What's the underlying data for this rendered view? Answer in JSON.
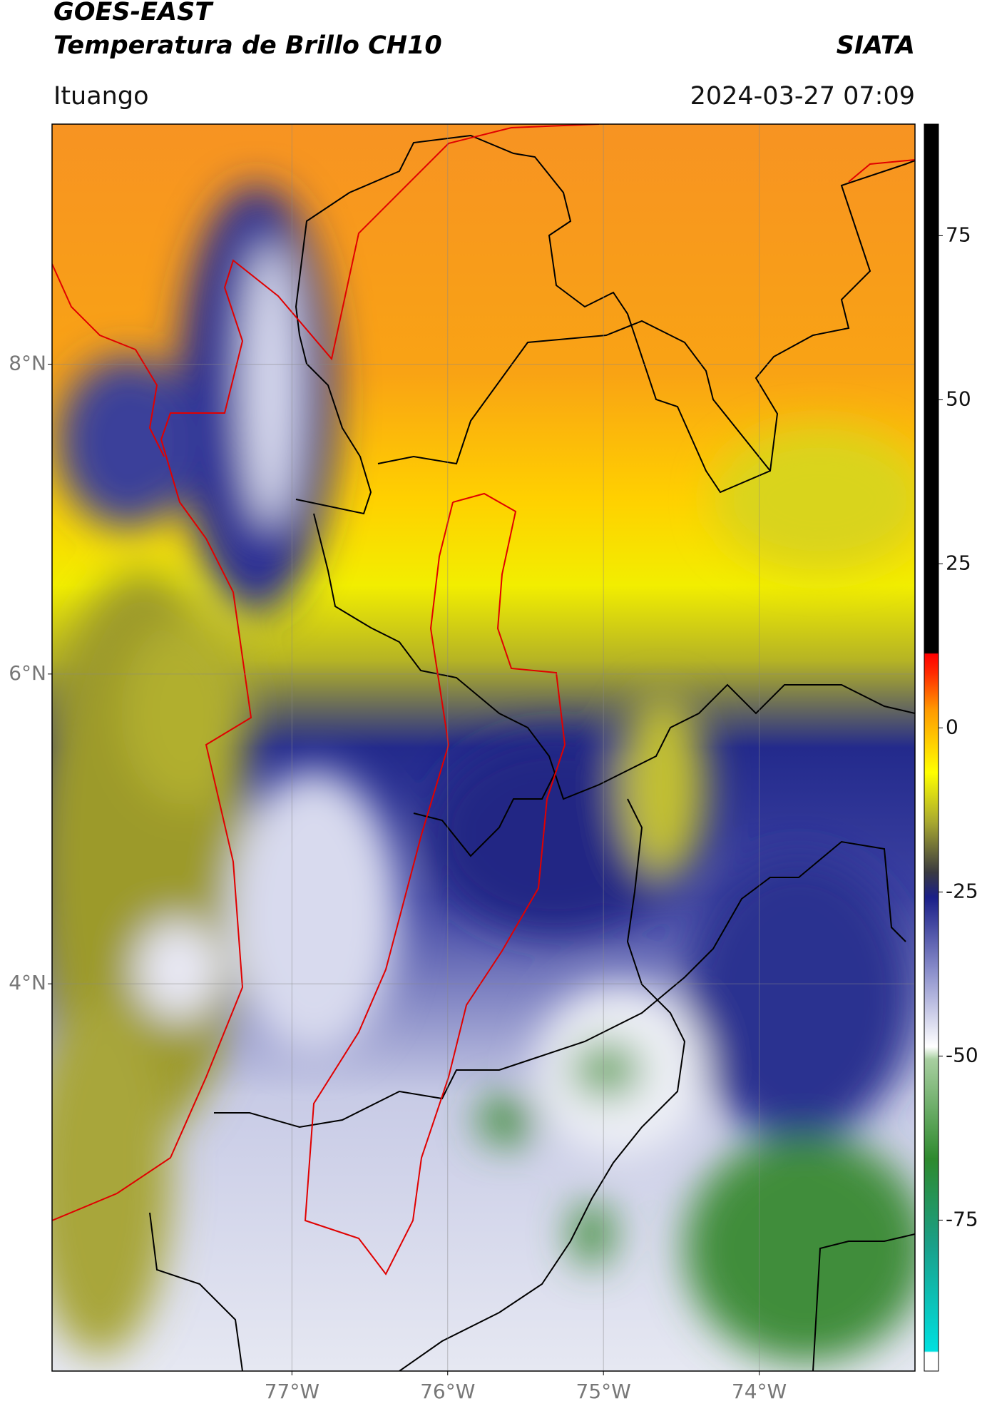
{
  "header": {
    "title": "GOES-EAST",
    "subtitle": "Temperatura de Brillo CH10",
    "brand": "SIATA",
    "location": "Ituango",
    "timestamp": "2024-03-27 07:09"
  },
  "map": {
    "latlim": [
      1.5,
      9.55
    ],
    "lonlim": [
      -78.54,
      -73.0
    ],
    "latticks": [
      {
        "value": 8,
        "label": "8°N"
      },
      {
        "value": 6,
        "label": "6°N"
      },
      {
        "value": 4,
        "label": "4°N"
      }
    ],
    "lonticks": [
      {
        "value": -77,
        "label": "77°W"
      },
      {
        "value": -76,
        "label": "76°W"
      },
      {
        "value": -75,
        "label": "75°W"
      },
      {
        "value": -74,
        "label": "74°W"
      }
    ],
    "grid": true
  },
  "colorbar": {
    "lim": [
      -98,
      92
    ],
    "ticks": [
      75,
      50,
      25,
      0,
      -25,
      -50,
      -75
    ]
  }
}
